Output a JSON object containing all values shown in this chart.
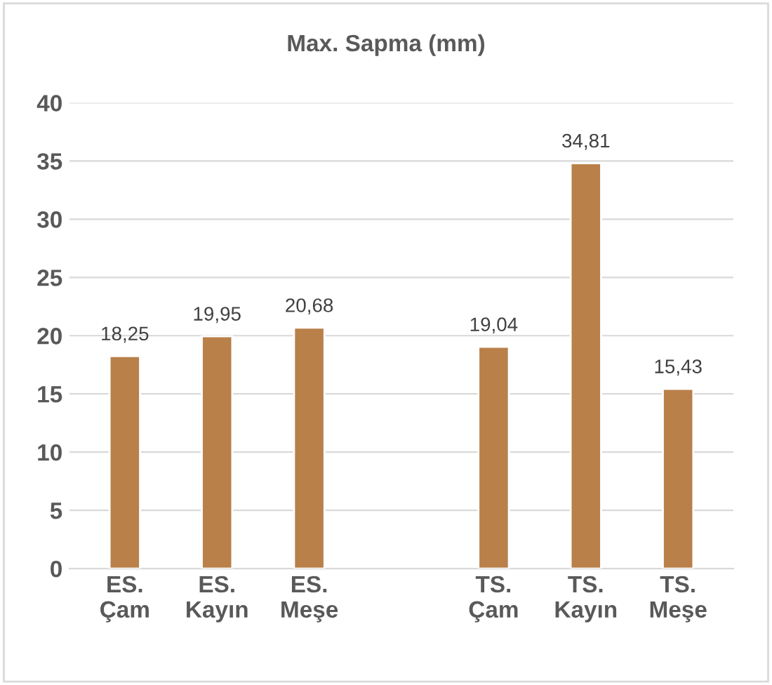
{
  "chart_data": {
    "type": "bar",
    "title": "Max. Sapma (mm)",
    "categories": [
      "ES.\nÇam",
      "ES.\nKayın",
      "ES.\nMeşe",
      null,
      "TS.\nÇam",
      "TS.\nKayın",
      "TS.\nMeşe"
    ],
    "values": [
      18.25,
      19.95,
      20.68,
      null,
      19.04,
      34.81,
      15.43
    ],
    "value_labels": [
      "18,25",
      "19,95",
      "20,68",
      null,
      "19,04",
      "34,81",
      "15,43"
    ],
    "color": "#b9804a",
    "ylim": [
      0,
      40
    ],
    "yticks": [
      0,
      5,
      10,
      15,
      20,
      25,
      30,
      35,
      40
    ],
    "grid": "y"
  }
}
